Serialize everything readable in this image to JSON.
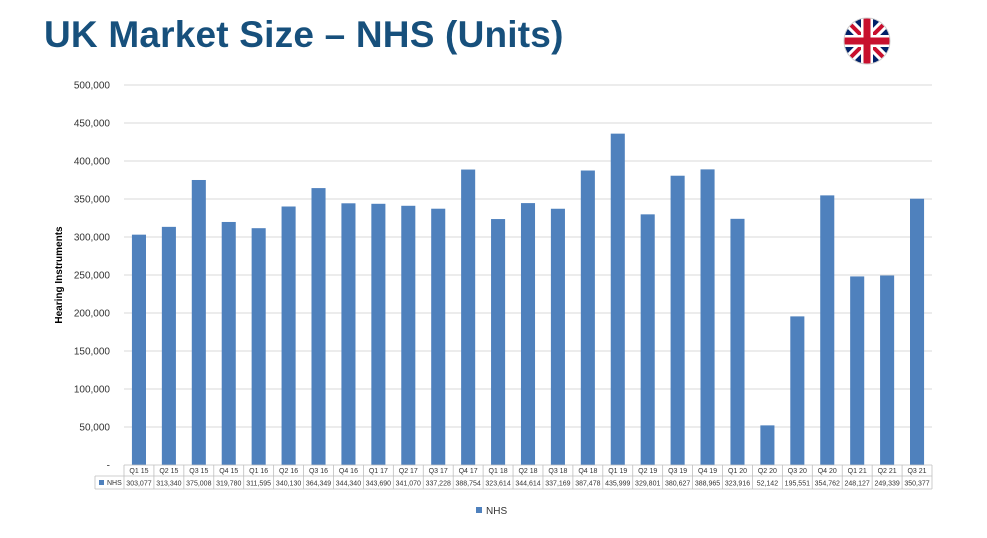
{
  "title": "UK Market Size – NHS (Units)",
  "flag_icon": "uk-flag-icon",
  "colors": {
    "title": "#17507c",
    "bar": "#4f81bd",
    "grid": "#d9d9d9"
  },
  "chart_data": {
    "type": "bar",
    "ylabel": "Hearing Instruments",
    "xlabel": "",
    "ylim": [
      0,
      500000
    ],
    "yticks": [
      "-",
      "50,000",
      "100,000",
      "150,000",
      "200,000",
      "250,000",
      "300,000",
      "350,000",
      "400,000",
      "450,000",
      "500,000"
    ],
    "grid": true,
    "legend_position": "bottom",
    "categories": [
      "Q1 15",
      "Q2 15",
      "Q3 15",
      "Q4 15",
      "Q1 16",
      "Q2 16",
      "Q3 16",
      "Q4 16",
      "Q1 17",
      "Q2 17",
      "Q3 17",
      "Q4 17",
      "Q1 18",
      "Q2 18",
      "Q3 18",
      "Q4 18",
      "Q1 19",
      "Q2 19",
      "Q3 19",
      "Q4 19",
      "Q1 20",
      "Q2 20",
      "Q3 20",
      "Q4 20",
      "Q1 21",
      "Q2 21",
      "Q3 21"
    ],
    "series": [
      {
        "name": "NHS",
        "values": [
          303077,
          313340,
          375008,
          319780,
          311595,
          340130,
          364349,
          344340,
          343690,
          341070,
          337228,
          388754,
          323614,
          344614,
          337169,
          387478,
          435999,
          329801,
          380627,
          388965,
          323916,
          52142,
          195551,
          354762,
          248127,
          249339,
          350377
        ],
        "value_labels": [
          "303,077",
          "313,340",
          "375,008",
          "319,780",
          "311,595",
          "340,130",
          "364,349",
          "344,340",
          "343,690",
          "341,070",
          "337,228",
          "388,754",
          "323,614",
          "344,614",
          "337,169",
          "387,478",
          "435,999",
          "329,801",
          "380,627",
          "388,965",
          "323,916",
          "52,142",
          "195,551",
          "354,762",
          "248,127",
          "249,339",
          "350,377"
        ]
      }
    ]
  }
}
